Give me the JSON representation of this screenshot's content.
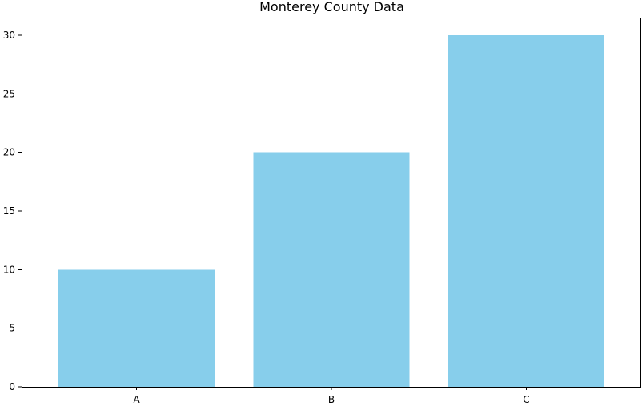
{
  "chart_data": {
    "type": "bar",
    "title": "Monterey County Data",
    "xlabel": "",
    "ylabel": "",
    "categories": [
      "A",
      "B",
      "C"
    ],
    "values": [
      10,
      20,
      30
    ],
    "ylim": [
      0,
      31.5
    ],
    "yticks": [
      0,
      5,
      10,
      15,
      20,
      25,
      30
    ],
    "bar_color": "#87CEEB",
    "grid": false,
    "legend": "none"
  }
}
